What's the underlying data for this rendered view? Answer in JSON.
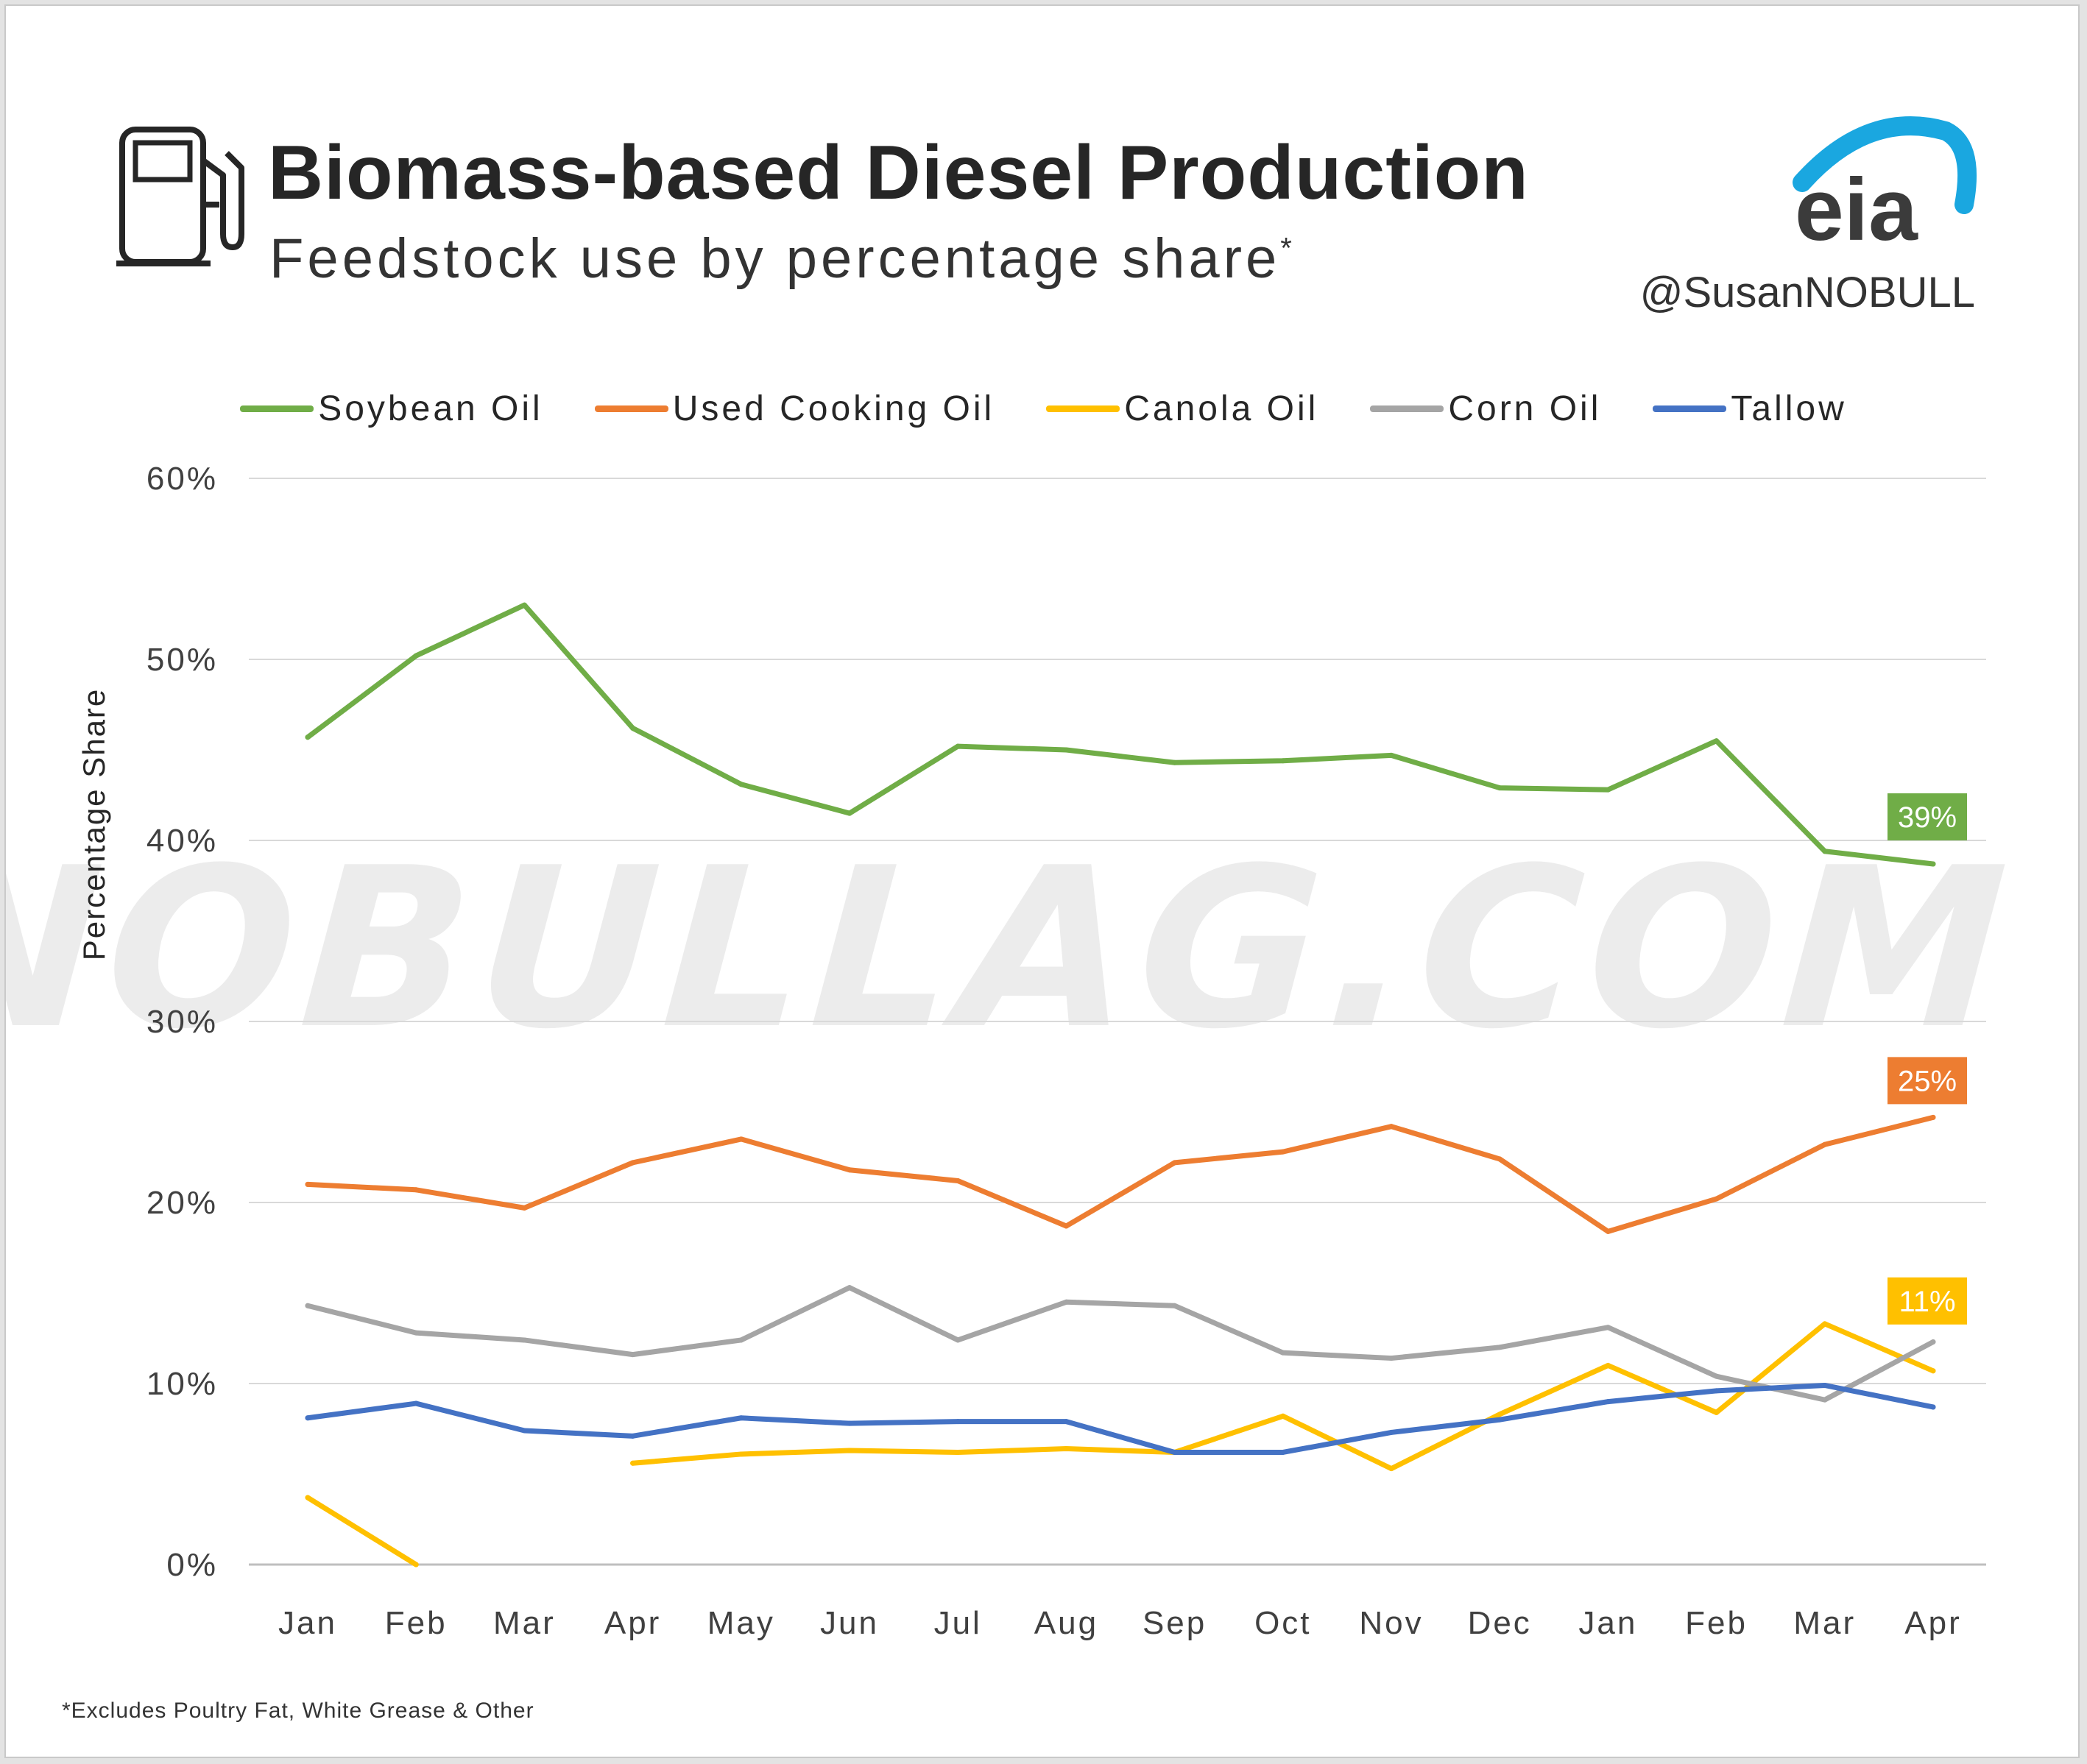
{
  "title": "Biomass-based Diesel Production",
  "subtitle": "Feedstock use by percentage share",
  "subtitle_mark": "*",
  "brand": {
    "logo_text": "eia",
    "handle": "@SusanNOBULL"
  },
  "watermark": "NOBULLAG.COM",
  "footnote": "*Excludes Poultry Fat, White Grease & Other",
  "icons": {
    "header": "fuel-pump-icon"
  },
  "chart_data": {
    "type": "line",
    "ylabel": "Percentage Share",
    "ylim": [
      0,
      60
    ],
    "yticks": [
      0,
      10,
      20,
      30,
      40,
      50,
      60
    ],
    "ytick_labels": [
      "0%",
      "10%",
      "20%",
      "30%",
      "40%",
      "50%",
      "60%"
    ],
    "grid": true,
    "legend_position": "top",
    "categories": [
      "Jan",
      "Feb",
      "Mar",
      "Apr",
      "May",
      "Jun",
      "Jul",
      "Aug",
      "Sep",
      "Oct",
      "Nov",
      "Dec",
      "Jan",
      "Feb",
      "Mar",
      "Apr"
    ],
    "series": [
      {
        "name": "Soybean Oil",
        "color": "#70ad47",
        "values": [
          45.7,
          50.2,
          53.0,
          46.2,
          43.1,
          41.5,
          45.2,
          45.0,
          44.3,
          44.4,
          44.7,
          42.9,
          42.8,
          45.5,
          39.4,
          38.7
        ],
        "end_label": "39%"
      },
      {
        "name": "Used Cooking Oil",
        "color": "#ed7d31",
        "values": [
          21.0,
          20.7,
          19.7,
          22.2,
          23.5,
          21.8,
          21.2,
          18.7,
          22.2,
          22.8,
          24.2,
          22.4,
          18.4,
          20.2,
          23.2,
          24.7
        ],
        "end_label": "25%"
      },
      {
        "name": "Canola Oil",
        "color": "#ffc000",
        "values": [
          3.7,
          0.0,
          null,
          5.6,
          6.1,
          6.3,
          6.2,
          6.4,
          6.2,
          8.2,
          5.3,
          8.3,
          11.0,
          8.4,
          13.3,
          10.7
        ],
        "end_label": "11%"
      },
      {
        "name": "Corn Oil",
        "color": "#a5a5a5",
        "values": [
          14.3,
          12.8,
          12.4,
          11.6,
          12.4,
          15.3,
          12.4,
          14.5,
          14.3,
          11.7,
          11.4,
          12.0,
          13.1,
          10.4,
          9.1,
          12.3
        ]
      },
      {
        "name": "Tallow",
        "color": "#4472c4",
        "values": [
          8.1,
          8.9,
          7.4,
          7.1,
          8.1,
          7.8,
          7.9,
          7.9,
          6.2,
          6.2,
          7.3,
          8.0,
          9.0,
          9.6,
          9.9,
          8.7
        ]
      }
    ],
    "canola_gap_note_index": 2
  }
}
